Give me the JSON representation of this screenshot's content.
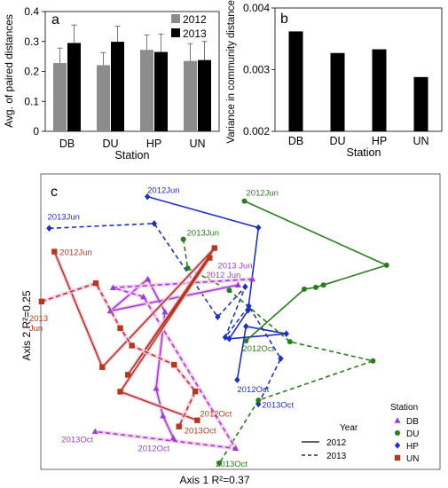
{
  "chart_data": [
    {
      "panel": "a",
      "type": "bar",
      "categories": [
        "DB",
        "DU",
        "HP",
        "UN"
      ],
      "xlabel": "Station",
      "ylabel": "Avg. of paired distances",
      "ylim": [
        0,
        0.4
      ],
      "yticks": [
        "0",
        "0.1",
        "0.2",
        "0.3",
        "0.4"
      ],
      "legend_position": "top-right",
      "series": [
        {
          "name": "2012",
          "color": "#8c8c8c",
          "values": [
            0.228,
            0.221,
            0.272,
            0.235
          ],
          "errors": [
            0.05,
            0.042,
            0.05,
            0.058
          ]
        },
        {
          "name": "2013",
          "color": "#000000",
          "values": [
            0.295,
            0.299,
            0.265,
            0.238
          ],
          "errors": [
            0.06,
            0.052,
            0.06,
            0.062
          ]
        }
      ]
    },
    {
      "panel": "b",
      "type": "bar",
      "categories": [
        "DB",
        "DU",
        "HP",
        "UN"
      ],
      "xlabel": "Station",
      "ylabel": "Variance in community distances",
      "ylim": [
        0.002,
        0.004
      ],
      "yticks": [
        "0.002",
        "0.003",
        "0.004"
      ],
      "series": [
        {
          "color": "#000000",
          "values": [
            0.00362,
            0.00327,
            0.00333,
            0.00288
          ]
        }
      ]
    },
    {
      "panel": "c",
      "type": "scatter",
      "xlabel": "Axis 1  R²=0.37",
      "ylabel": "Axis 2  R²=0.25",
      "xlim": [
        0,
        100
      ],
      "ylim": [
        0,
        100
      ],
      "legend": {
        "year_title": "Year",
        "years": [
          {
            "label": "2012",
            "dash": "solid"
          },
          {
            "label": "2013",
            "dash": "dashed"
          }
        ],
        "station_title": "Station",
        "stations": [
          {
            "label": "DB",
            "marker": "triangle",
            "color": "#9a3fd6"
          },
          {
            "label": "DU",
            "marker": "circle",
            "color": "#2a7d1f"
          },
          {
            "label": "HP",
            "marker": "diamond",
            "color": "#1f2fbf"
          },
          {
            "label": "UN",
            "marker": "square",
            "color": "#b23a1f"
          }
        ]
      },
      "series": [
        {
          "station": "HP",
          "year": "2012",
          "color": "#1f2fbf",
          "marker": "diamond",
          "x": [
            26.7,
            54.5,
            51.9,
            47.2,
            61.5,
            51.4,
            49.2
          ],
          "y": [
            92.3,
            81.8,
            53.8,
            44.2,
            45.9,
            48.4,
            30.3
          ],
          "start_label": "2012Jun",
          "end_label": "2012Oct"
        },
        {
          "station": "HP",
          "year": "2013",
          "color": "#1f2fbf",
          "marker": "diamond",
          "x": [
            2.1,
            28.4,
            44.3,
            51.2,
            46.2,
            52.1,
            60.1,
            54.5
          ],
          "y": [
            81.6,
            83.2,
            51.6,
            61.8,
            44.7,
            55.3,
            37.5,
            22.1
          ],
          "start_label": "2013Jun",
          "end_label": "2013Oct"
        },
        {
          "station": "DU",
          "year": "2012",
          "color": "#2a7d1f",
          "marker": "circle",
          "x": [
            51.0,
            86.6,
            70.8,
            68.9,
            66.0,
            51.4
          ],
          "y": [
            90.8,
            69.1,
            62.4,
            61.6,
            61.0,
            43.5
          ],
          "start_label": "2012Jun",
          "end_label": "2012Oct"
        },
        {
          "station": "DU",
          "year": "2013",
          "color": "#2a7d1f",
          "marker": "circle",
          "x": [
            35.7,
            36.8,
            47.2,
            62.4,
            83.2,
            54.5,
            44.7
          ],
          "y": [
            77.9,
            68.1,
            60.6,
            43.2,
            36.7,
            23.4,
            2.1
          ],
          "start_label": "2013Jun",
          "end_label": "2013Oct"
        },
        {
          "station": "DB",
          "year": "2012",
          "color": "#9a3fd6",
          "marker": "triangle",
          "x": [
            49.4,
            17.4,
            26.8,
            31.1,
            28.9,
            30.6,
            33.2
          ],
          "y": [
            62.4,
            53.6,
            64.4,
            53.3,
            27.4,
            18.1,
            10.6
          ],
          "start_label": "2012 Jun",
          "end_label": "2012Oct"
        },
        {
          "station": "DB",
          "year": "2013",
          "color": "#9a3fd6",
          "marker": "triangle",
          "x": [
            53.0,
            18.1,
            25.7,
            48.8,
            13.6
          ],
          "y": [
            64.4,
            61.5,
            58.4,
            7.1,
            12.8
          ],
          "start_label": "2013 Jun",
          "end_label": "2013Oct"
        },
        {
          "station": "UN",
          "year": "2012",
          "color": "#b23a1f",
          "marker": "square",
          "x": [
            3.4,
            15.4,
            43.5,
            21.8,
            42.3,
            19.9,
            39.2
          ],
          "y": [
            73.7,
            34.6,
            74.9,
            32.0,
            71.6,
            26.3,
            16.6
          ],
          "start_label": "2012Jun",
          "end_label": "2012Oct"
        },
        {
          "station": "UN",
          "year": "2013",
          "color": "#b23a1f",
          "marker": "square",
          "x": [
            0.2,
            13.8,
            19.9,
            22.8,
            33.4,
            38.7,
            34.6
          ],
          "y": [
            56.8,
            63.0,
            47.8,
            41.9,
            35.4,
            26.4,
            14.5
          ],
          "start_label": "2013\nJun",
          "end_label": "2013Oct"
        }
      ]
    }
  ]
}
